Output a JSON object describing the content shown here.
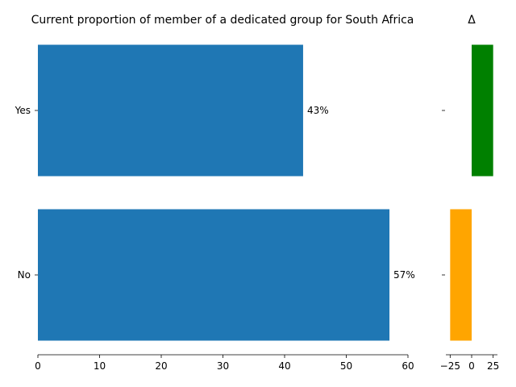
{
  "chart_data": [
    {
      "type": "bar",
      "orientation": "horizontal",
      "title": "Current proportion of member of a dedicated group for South Africa",
      "categories": [
        "Yes",
        "No"
      ],
      "values": [
        43,
        57
      ],
      "value_labels": [
        "43%",
        "57%"
      ],
      "xlim": [
        0,
        60
      ],
      "xticks": [
        0,
        10,
        20,
        30,
        40,
        50,
        60
      ],
      "bar_color": "#1f77b4",
      "grid": false
    },
    {
      "type": "bar",
      "orientation": "horizontal",
      "title": "Δ",
      "categories": [
        "Yes",
        "No"
      ],
      "values": [
        25,
        -25
      ],
      "colors": [
        "#008000",
        "#ffa500"
      ],
      "xlim": [
        -30,
        30
      ],
      "xticks": [
        -25,
        0,
        25
      ],
      "grid": false
    }
  ]
}
